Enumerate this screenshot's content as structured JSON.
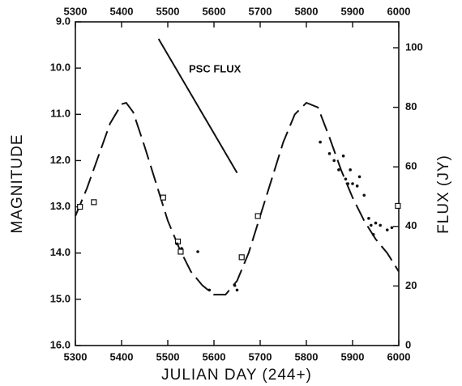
{
  "chart_data": {
    "type": "line",
    "x_label": "JULIAN DAY (244+)",
    "y_label": "MAGNITUDE",
    "y2_label": "FLUX (JY)",
    "annotation": "PSC FLUX",
    "xlim": [
      5300,
      6000
    ],
    "xticks": [
      5300,
      5400,
      5500,
      5600,
      5700,
      5800,
      5900,
      6000
    ],
    "ylim": [
      16,
      9
    ],
    "yticks": [
      {
        "value": 9,
        "label": "9.0"
      },
      {
        "value": 10,
        "label": "10.0"
      },
      {
        "value": 11,
        "label": "11.0"
      },
      {
        "value": 12,
        "label": "12.0"
      },
      {
        "value": 13,
        "label": "13.0"
      },
      {
        "value": 14,
        "label": "14.0"
      },
      {
        "value": 15,
        "label": "15.0"
      },
      {
        "value": 16,
        "label": "16.0"
      }
    ],
    "y2lim": [
      0,
      108.7
    ],
    "y2ticks": [
      0,
      20,
      40,
      60,
      80,
      100
    ],
    "color": "#111111",
    "series": [
      {
        "marker": "none",
        "dash": true,
        "color": "#111111",
        "x": [
          5300,
          5325,
          5350,
          5375,
          5400,
          5410,
          5425,
          5450,
          5475,
          5500,
          5525,
          5550,
          5575,
          5600,
          5625,
          5650,
          5675,
          5700,
          5725,
          5750,
          5775,
          5800,
          5825,
          5850,
          5875,
          5900,
          5925,
          5950,
          5975,
          6000
        ],
        "values": [
          13.2,
          12.6,
          11.9,
          11.2,
          10.78,
          10.75,
          10.95,
          11.7,
          12.5,
          13.3,
          13.9,
          14.4,
          14.7,
          14.9,
          14.9,
          14.6,
          14.0,
          13.2,
          12.4,
          11.6,
          11.0,
          10.75,
          10.85,
          11.5,
          12.2,
          12.8,
          13.3,
          13.7,
          14.0,
          14.4
        ]
      },
      {
        "marker": "square-open",
        "dash": false,
        "color": "#111111",
        "x": [
          5310,
          5340,
          5490,
          5522,
          5528,
          5660,
          5695,
          5998
        ],
        "values": [
          13.0,
          12.9,
          12.8,
          13.75,
          13.97,
          14.09,
          13.2,
          12.98
        ]
      },
      {
        "marker": "dot",
        "dash": false,
        "color": "#111111",
        "x": [
          5520,
          5530,
          5565,
          5590,
          5645,
          5650,
          5830,
          5850,
          5860,
          5870,
          5880,
          5885,
          5890,
          5895,
          5900,
          5910,
          5915,
          5925,
          5935,
          5940,
          5945,
          5950,
          5960,
          5975,
          5985
        ],
        "values": [
          13.8,
          13.9,
          13.97,
          14.8,
          14.7,
          14.8,
          11.6,
          11.85,
          12.0,
          12.2,
          11.9,
          12.4,
          12.5,
          12.2,
          12.5,
          12.55,
          12.35,
          12.75,
          13.25,
          13.4,
          13.6,
          13.35,
          13.4,
          13.5,
          13.45
        ]
      },
      {
        "marker": "none",
        "dash": false,
        "axis": "y2",
        "color": "#111111",
        "x": [
          5480,
          5650
        ],
        "values": [
          103,
          58
        ]
      }
    ]
  }
}
